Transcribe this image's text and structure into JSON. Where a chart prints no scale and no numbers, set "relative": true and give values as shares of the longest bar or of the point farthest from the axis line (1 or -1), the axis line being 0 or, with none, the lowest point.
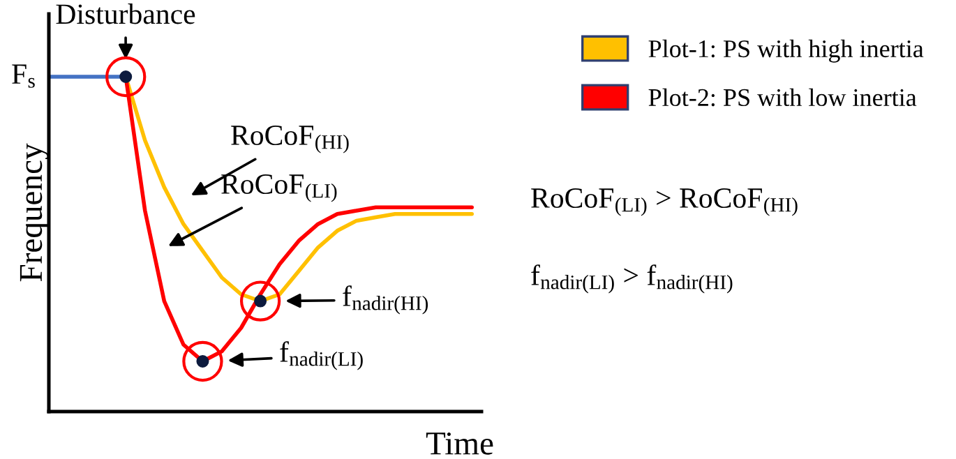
{
  "chart_data": {
    "type": "line",
    "relative": true,
    "xlabel": "Time",
    "ylabel": "Frequency",
    "categories": [
      null,
      null,
      null,
      null,
      null,
      null,
      null,
      null,
      null,
      null,
      null,
      null,
      null,
      null,
      null,
      null,
      null,
      null,
      null,
      null,
      null,
      null,
      null
    ],
    "series": [
      {
        "color": "#4472c4",
        "values": [
          1,
          1,
          1,
          1,
          1,
          null,
          null,
          null,
          null,
          null,
          null,
          null,
          null,
          null,
          null,
          null,
          null,
          null,
          null,
          null,
          null,
          null,
          null
        ]
      },
      {
        "name": "Plot-1: PS with high inertia",
        "color": "#ffc000",
        "values": [
          null,
          null,
          null,
          null,
          1,
          0.81,
          0.67,
          0.56,
          0.48,
          0.4,
          0.35,
          0.33,
          0.35,
          0.42,
          0.49,
          0.54,
          0.57,
          0.58,
          0.59,
          0.59,
          0.59,
          0.59,
          0.59
        ]
      },
      {
        "name": "Plot-2: PS with low inertia",
        "color": "#ff0000",
        "values": [
          null,
          null,
          null,
          null,
          1,
          0.6,
          0.33,
          0.2,
          0.15,
          0.18,
          0.25,
          0.35,
          0.44,
          0.51,
          0.56,
          0.59,
          0.6,
          0.61,
          0.61,
          0.61,
          0.61,
          0.61,
          0.61
        ]
      }
    ],
    "legend": "top right",
    "annotations": [
      "Disturbance",
      "F$_{s}$",
      "RoCoF$_{(HI)}$",
      "RoCoF$_{(LI)}$",
      "f$_{nadir(HI)}$",
      "f$_{nadir(LI)}$",
      "RoCoF$_{(LI)}$ > RoCoF$_{(HI)}$",
      "f$_{nadir(LI)}$ > f$_{nadir(HI)}$"
    ]
  }
}
